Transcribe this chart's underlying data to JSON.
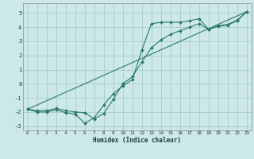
{
  "xlabel": "Humidex (Indice chaleur)",
  "bg_color": "#cce8e8",
  "grid_color": "#aacccc",
  "line_color": "#2a7a6a",
  "xlim": [
    -0.5,
    23.5
  ],
  "ylim": [
    -3.3,
    5.7
  ],
  "xtick_vals": [
    0,
    1,
    2,
    3,
    4,
    5,
    6,
    7,
    8,
    9,
    10,
    11,
    12,
    13,
    14,
    15,
    16,
    17,
    18,
    19,
    20,
    21,
    22,
    23
  ],
  "ytick_vals": [
    -3,
    -2,
    -1,
    0,
    1,
    2,
    3,
    4,
    5
  ],
  "series1_x": [
    0,
    1,
    2,
    3,
    4,
    5,
    6,
    7,
    8,
    9,
    10,
    11,
    12,
    13,
    14,
    15,
    16,
    17,
    18,
    19,
    20,
    21,
    22,
    23
  ],
  "series1_y": [
    -1.8,
    -2.0,
    -2.0,
    -1.85,
    -2.05,
    -2.15,
    -2.8,
    -2.4,
    -1.5,
    -0.7,
    -0.15,
    0.3,
    2.4,
    4.25,
    4.35,
    4.35,
    4.35,
    4.45,
    4.6,
    3.85,
    4.05,
    4.15,
    4.45,
    5.1
  ],
  "series2_x": [
    0,
    1,
    2,
    3,
    4,
    5,
    6,
    7,
    8,
    9,
    10,
    11,
    12,
    13,
    14,
    15,
    16,
    17,
    18,
    19,
    20,
    21,
    22,
    23
  ],
  "series2_y": [
    -1.8,
    -1.9,
    -1.9,
    -1.75,
    -1.9,
    -2.0,
    -2.05,
    -2.5,
    -2.1,
    -1.1,
    0.0,
    0.5,
    1.55,
    2.55,
    3.1,
    3.5,
    3.75,
    4.0,
    4.25,
    3.85,
    4.1,
    4.2,
    4.5,
    5.1
  ],
  "series3_x": [
    0,
    23
  ],
  "series3_y": [
    -1.8,
    5.1
  ]
}
